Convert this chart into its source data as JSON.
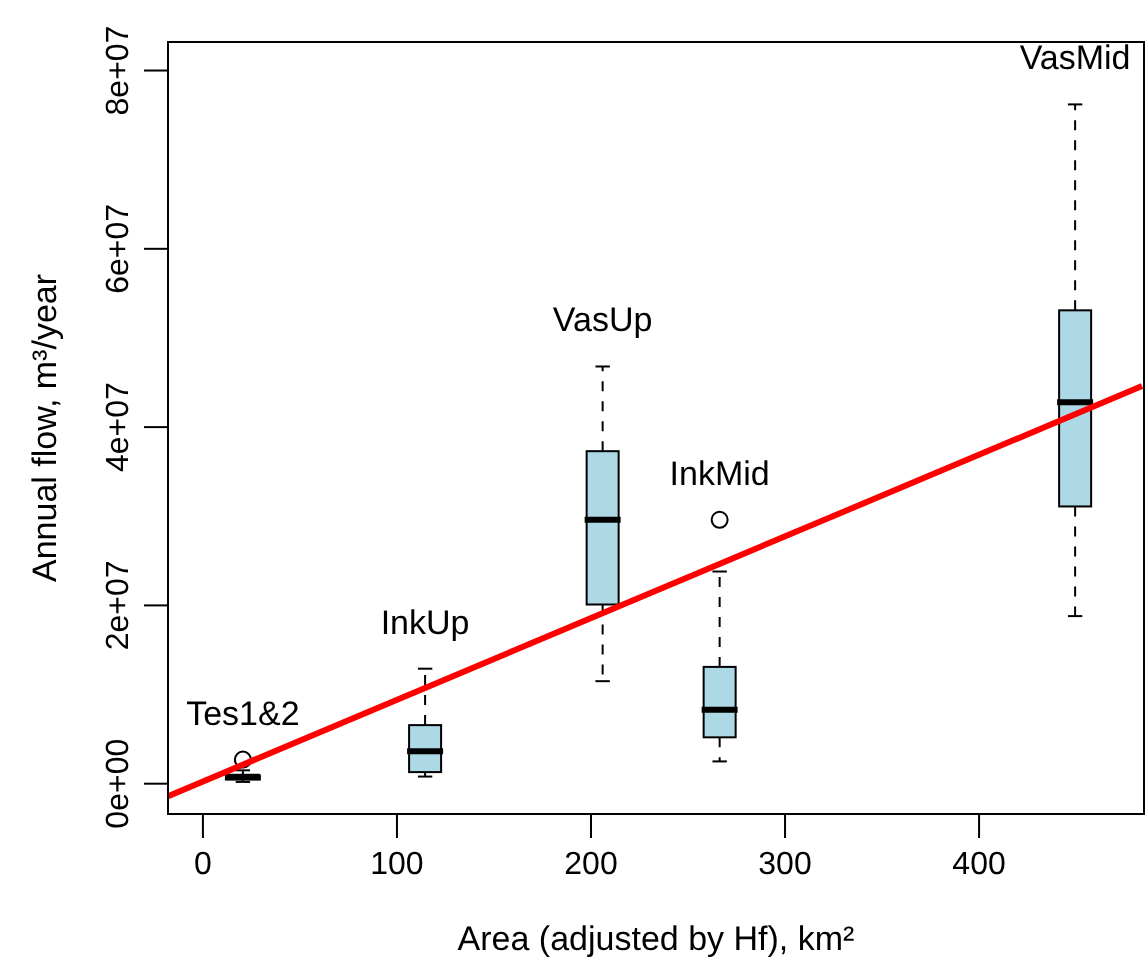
{
  "chart_data": {
    "type": "box",
    "xlabel": "Area (adjusted by Hf), km²",
    "ylabel": "Annual flow, m³/year",
    "xlim": [
      -18,
      485
    ],
    "xticks": [
      0,
      100,
      200,
      300,
      400
    ],
    "ylim": [
      -3400000,
      83200000
    ],
    "yticks": [
      {
        "value": 0,
        "label": "0e+00"
      },
      {
        "value": 20000000,
        "label": "2e+07"
      },
      {
        "value": 40000000,
        "label": "4e+07"
      },
      {
        "value": 60000000,
        "label": "6e+07"
      },
      {
        "value": 80000000,
        "label": "8e+07"
      }
    ],
    "series": [
      {
        "color": "#add8e6",
        "x": [
          20.6,
          114.5,
          206,
          266.3,
          449.5
        ],
        "boxes": [
          {
            "low": 200000,
            "q1": 500000,
            "median": 700000,
            "q3": 1000000,
            "high": 1500000,
            "outliers": [
              2700000
            ]
          },
          {
            "low": 800000,
            "q1": 1300000,
            "median": 3650000,
            "q3": 6570000,
            "high": 12900000
          },
          {
            "low": 11500000,
            "q1": 20100000,
            "median": 29600000,
            "q3": 37300000,
            "high": 46800000
          },
          {
            "low": 2500000,
            "q1": 5200000,
            "median": 8300000,
            "q3": 13100000,
            "high": 23800000,
            "outliers": [
              29600000
            ]
          },
          {
            "low": 18800000,
            "q1": 31100000,
            "median": 42800000,
            "q3": 53100000,
            "high": 76200000
          }
        ]
      },
      {
        "type": "line",
        "color": "#ff0000",
        "x": [
          -18,
          484
        ],
        "values": [
          -1400000,
          44600000
        ]
      }
    ],
    "annotations": [
      "Tes1&2",
      "InkUp",
      "VasUp",
      "InkMid",
      "VasMid"
    ]
  }
}
